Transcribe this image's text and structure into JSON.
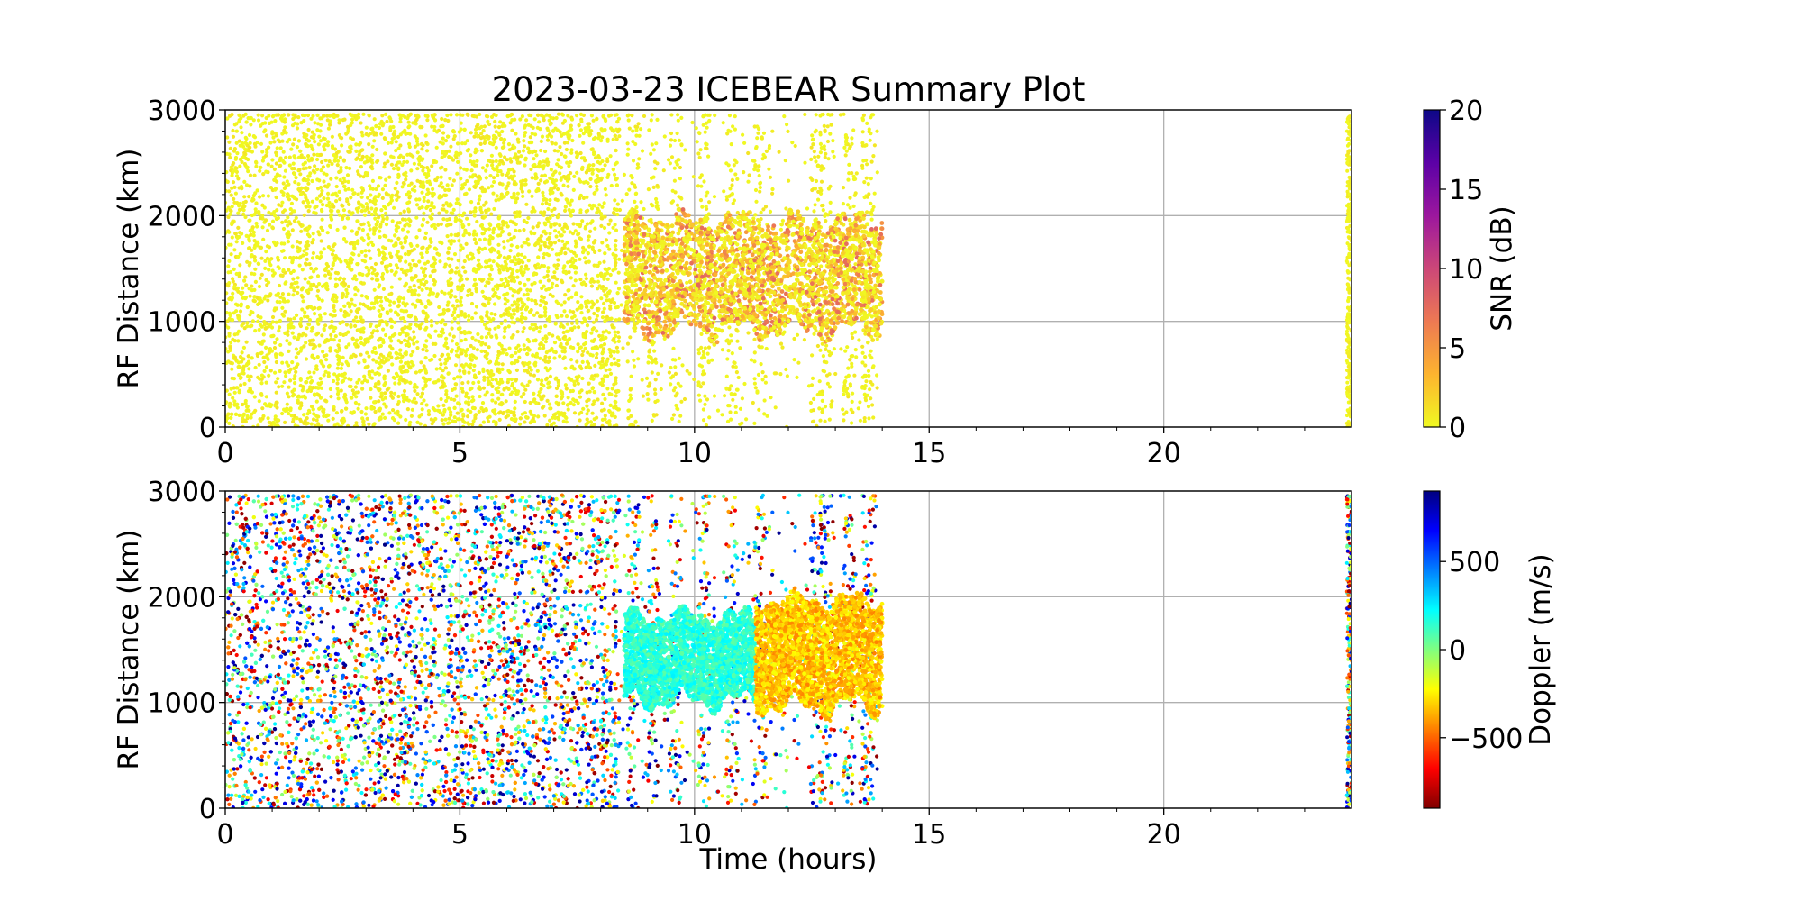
{
  "chart_data": [
    {
      "type": "scatter",
      "title": "2023-03-23 ICEBEAR Summary Plot",
      "xlabel": "",
      "ylabel": "RF Distance (km)",
      "xlim": [
        0,
        24
      ],
      "ylim": [
        0,
        3000
      ],
      "xticks": [
        "0",
        "5",
        "10",
        "15",
        "20"
      ],
      "yticks": [
        "0",
        "1000",
        "2000",
        "3000"
      ],
      "grid": true,
      "colorbar": {
        "label": "SNR (dB)",
        "colormap": "plasma-reversed",
        "range": [
          0,
          20
        ],
        "ticks": [
          "0",
          "5",
          "10",
          "15",
          "20"
        ],
        "colors": [
          "#f0f921",
          "#fdb42f",
          "#ed7953",
          "#cc4778",
          "#9c179e",
          "#5c01a6",
          "#0d0887"
        ]
      },
      "regions": [
        {
          "kind": "background-noise",
          "x": [
            0,
            8.4
          ],
          "y": [
            0,
            3000
          ],
          "snr_db": [
            0,
            1
          ]
        },
        {
          "kind": "sparse-noise",
          "x": [
            8.4,
            13.9
          ],
          "y": [
            0,
            3000
          ],
          "snr_db": [
            0,
            1
          ]
        },
        {
          "kind": "echo-band",
          "x": [
            8.5,
            14.0
          ],
          "y": [
            800,
            2050
          ],
          "snr_db": [
            0,
            8
          ]
        },
        {
          "kind": "noise-strip",
          "x": [
            23.9,
            24.0
          ],
          "y": [
            0,
            3000
          ],
          "snr_db": [
            0,
            1
          ]
        }
      ]
    },
    {
      "type": "scatter",
      "title": "",
      "xlabel": "Time (hours)",
      "ylabel": "RF Distance (km)",
      "xlim": [
        0,
        24
      ],
      "ylim": [
        0,
        3000
      ],
      "xticks": [
        "0",
        "5",
        "10",
        "15",
        "20"
      ],
      "yticks": [
        "0",
        "1000",
        "2000",
        "3000"
      ],
      "grid": true,
      "colorbar": {
        "label": "Doppler (m/s)",
        "colormap": "jet-reversed",
        "range": [
          -900,
          900
        ],
        "ticks": [
          {
            "value": 500,
            "label": "500"
          },
          {
            "value": 0,
            "label": "0"
          },
          {
            "value": -500,
            "label": "−500"
          }
        ],
        "colors": [
          "#800000",
          "#ff0000",
          "#ff8000",
          "#ffff00",
          "#80ff80",
          "#00ffff",
          "#0080ff",
          "#0000ff",
          "#000080"
        ]
      },
      "regions": [
        {
          "kind": "background-noise",
          "x": [
            0,
            8.4
          ],
          "y": [
            0,
            3000
          ],
          "doppler_ms": [
            -900,
            900
          ]
        },
        {
          "kind": "sparse-noise",
          "x": [
            8.4,
            13.9
          ],
          "y": [
            0,
            3000
          ],
          "doppler_ms": [
            -900,
            900
          ]
        },
        {
          "kind": "echo-band-early",
          "x": [
            8.5,
            11.3
          ],
          "y": [
            900,
            1900
          ],
          "doppler_ms": [
            50,
            250
          ]
        },
        {
          "kind": "echo-band-late",
          "x": [
            11.3,
            14.0
          ],
          "y": [
            850,
            2050
          ],
          "doppler_ms": [
            -450,
            -200
          ]
        },
        {
          "kind": "noise-strip",
          "x": [
            23.9,
            24.0
          ],
          "y": [
            0,
            3000
          ],
          "doppler_ms": [
            -900,
            900
          ]
        }
      ]
    }
  ]
}
